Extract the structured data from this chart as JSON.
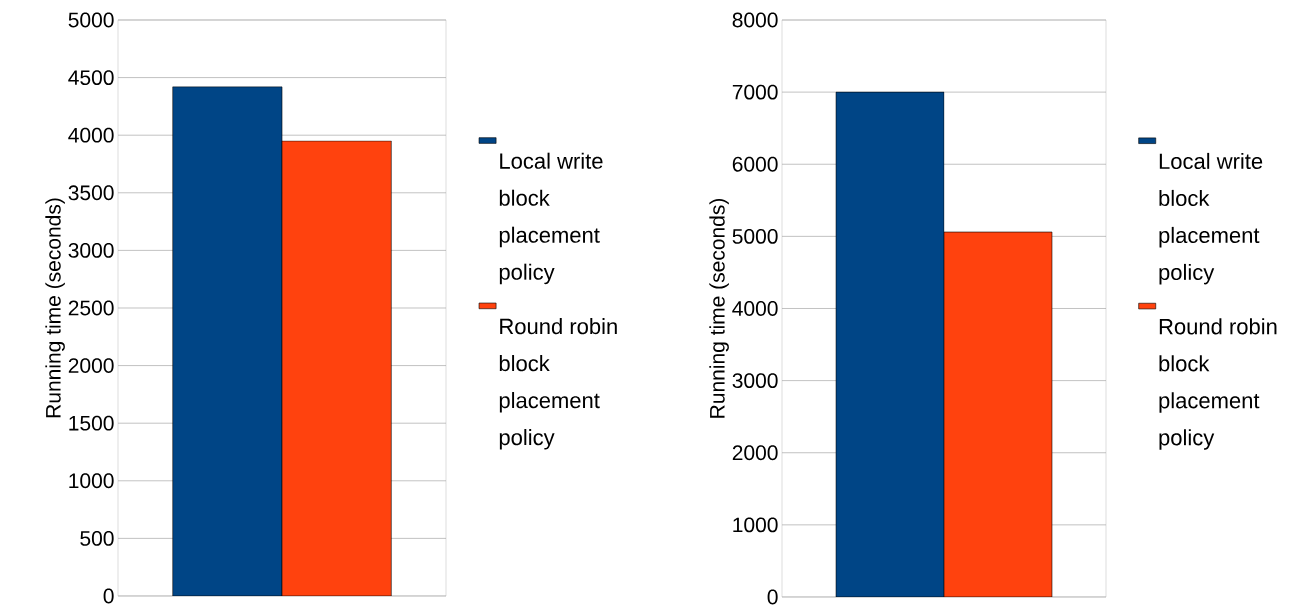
{
  "chart_data": [
    {
      "type": "bar",
      "ylabel": "Running time (seconds)",
      "categories": [
        null
      ],
      "ylim": [
        0,
        5000
      ],
      "yticks": [
        0,
        500,
        1000,
        1500,
        2000,
        2500,
        3000,
        3500,
        4000,
        4500,
        5000
      ],
      "grid": "y",
      "legend": "right",
      "tick_labels": "y",
      "series": [
        {
          "name": "Local write block placement policy",
          "color": "#004586",
          "values": [
            4420
          ]
        },
        {
          "name": "Round robin block placement policy",
          "color": "#ff420e",
          "values": [
            3950
          ]
        }
      ]
    },
    {
      "type": "bar",
      "ylabel": "Running time (seconds)",
      "categories": [
        null
      ],
      "ylim": [
        0,
        8000
      ],
      "yticks": [
        0,
        1000,
        2000,
        3000,
        4000,
        5000,
        6000,
        7000,
        8000
      ],
      "grid": "y",
      "legend": "right",
      "tick_labels": "y",
      "series": [
        {
          "name": "Local write block placement policy",
          "color": "#004586",
          "values": [
            7000
          ]
        },
        {
          "name": "Round robin block placement policy",
          "color": "#ff420e",
          "values": [
            5060
          ]
        }
      ]
    }
  ]
}
